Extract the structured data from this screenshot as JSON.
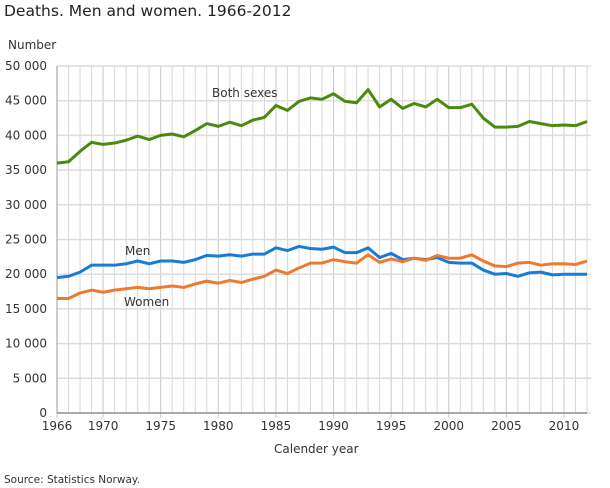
{
  "chart_data": {
    "type": "line",
    "title": "Deaths. Men and women. 1966-2012",
    "ylabel": "Number",
    "xlabel": "Calender year",
    "source": "Source: Statistics Norway.",
    "xlim": [
      1966,
      2012
    ],
    "ylim": [
      0,
      50000
    ],
    "grid": true,
    "x_ticks": [
      1966,
      1970,
      1975,
      1980,
      1985,
      1990,
      1995,
      2000,
      2005,
      2010
    ],
    "y_ticks": [
      0,
      5000,
      10000,
      15000,
      20000,
      25000,
      30000,
      35000,
      40000,
      45000,
      50000
    ],
    "y_tick_labels": [
      "0",
      "5 000",
      "10 000",
      "15 000",
      "20 000",
      "25 000",
      "30 000",
      "35 000",
      "40 000",
      "45 000",
      "50 000"
    ],
    "series": [
      {
        "name": "Both sexes",
        "color": "#4a8a0e",
        "values": [
          36000,
          36200,
          37700,
          39000,
          38700,
          38900,
          39300,
          39900,
          39400,
          40000,
          40200,
          39800,
          40700,
          41700,
          41300,
          41900,
          41400,
          42200,
          42600,
          44300,
          43600,
          44900,
          45400,
          45200,
          46000,
          44900,
          44700,
          46600,
          44100,
          45200,
          43900,
          44600,
          44100,
          45200,
          44000,
          44000,
          44500,
          42500,
          41200,
          41200,
          41300,
          42000,
          41700,
          41400,
          41500,
          41400,
          42000
        ]
      },
      {
        "name": "Men",
        "color": "#1a7bd6",
        "values": [
          19500,
          19700,
          20300,
          21300,
          21300,
          21300,
          21500,
          21900,
          21500,
          21900,
          21900,
          21700,
          22100,
          22700,
          22600,
          22800,
          22600,
          22900,
          22900,
          23800,
          23400,
          24000,
          23700,
          23600,
          23900,
          23100,
          23100,
          23800,
          22400,
          23000,
          22100,
          22300,
          22100,
          22400,
          21700,
          21600,
          21600,
          20600,
          20000,
          20100,
          19700,
          20200,
          20300,
          19900,
          20000,
          20000,
          20000
        ]
      },
      {
        "name": "Women",
        "color": "#ee7a30",
        "values": [
          16500,
          16500,
          17300,
          17700,
          17400,
          17700,
          17900,
          18100,
          17900,
          18100,
          18300,
          18100,
          18600,
          19000,
          18700,
          19100,
          18800,
          19300,
          19700,
          20600,
          20100,
          20900,
          21600,
          21600,
          22100,
          21800,
          21600,
          22800,
          21700,
          22200,
          21800,
          22300,
          22000,
          22700,
          22300,
          22300,
          22800,
          21900,
          21200,
          21100,
          21600,
          21700,
          21300,
          21500,
          21500,
          21400,
          21900
        ]
      }
    ]
  }
}
